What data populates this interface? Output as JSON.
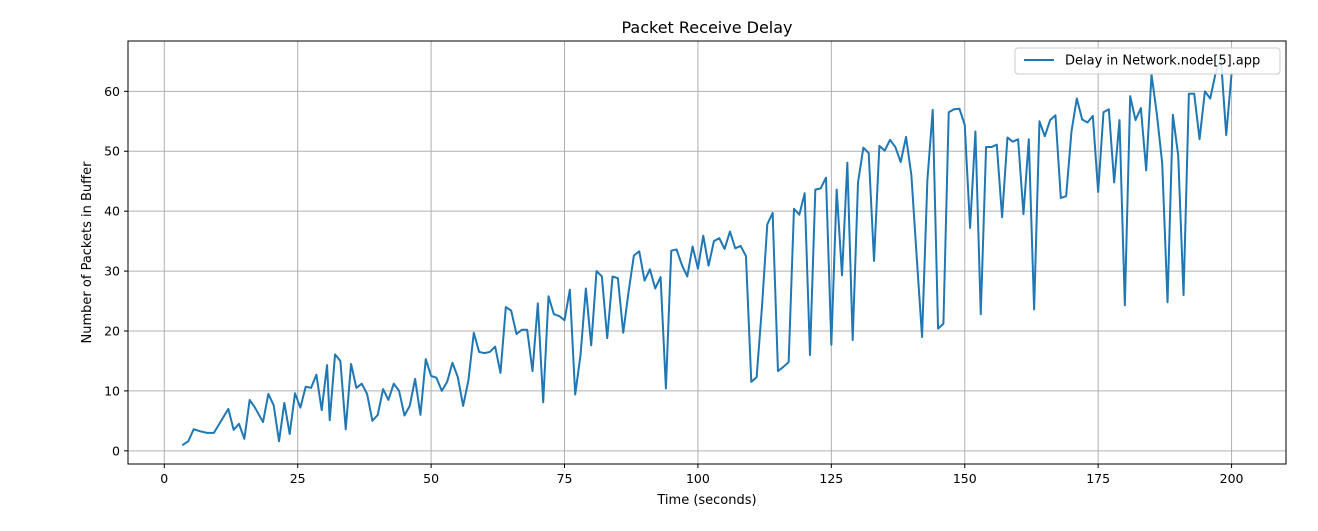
{
  "chart_data": {
    "type": "line",
    "title": "Packet Receive Delay",
    "xlabel": "Time (seconds)",
    "ylabel": "Number of Packets in Buffer",
    "xlim": [
      -6.8,
      210.2
    ],
    "ylim": [
      -2.2,
      68.4
    ],
    "xticks": [
      0,
      25,
      50,
      75,
      100,
      125,
      150,
      175,
      200
    ],
    "yticks": [
      0,
      10,
      20,
      30,
      40,
      50,
      60
    ],
    "grid": true,
    "legend_position": "top-right",
    "colors": {
      "series": "#1f77b4",
      "grid": "#b0b0b0",
      "axes": "#000000"
    },
    "series": [
      {
        "name": "Delay in Network.node[5].app",
        "x": [
          3.5,
          4.5,
          5.5,
          7,
          8,
          9.3,
          12,
          13,
          14,
          15,
          16,
          17,
          18.5,
          19.5,
          20.5,
          21.5,
          22.5,
          23.5,
          24.5,
          25.5,
          26.5,
          27.5,
          28.5,
          29.5,
          30.5,
          31,
          32,
          33,
          34,
          35,
          36,
          37,
          38,
          39,
          40,
          41,
          42,
          43,
          44,
          45,
          46,
          47,
          48,
          49,
          50,
          51,
          52,
          53,
          54,
          55,
          56,
          57,
          58,
          59,
          60,
          61,
          62,
          63,
          64,
          65,
          66,
          67,
          68,
          69,
          70,
          71,
          72,
          73,
          74,
          75,
          76,
          77,
          78,
          79,
          80,
          81,
          82,
          83,
          84,
          85,
          86,
          87,
          88,
          89,
          90,
          91,
          92,
          93,
          94,
          95,
          96,
          97,
          98,
          99,
          100,
          101,
          102,
          103,
          104,
          105,
          106,
          107,
          108,
          109,
          110,
          111,
          112,
          113,
          114,
          115,
          116,
          117,
          118,
          119,
          120,
          121,
          122,
          123,
          124,
          125,
          126,
          127,
          128,
          129,
          130,
          131,
          132,
          133,
          134,
          135,
          136,
          137,
          138,
          139,
          140,
          141,
          142,
          143,
          144,
          145,
          146,
          147,
          148,
          149,
          150,
          151,
          152,
          153,
          154,
          155,
          156,
          157,
          158,
          159,
          160,
          161,
          162,
          163,
          164,
          165,
          166,
          167,
          168,
          169,
          170,
          171,
          172,
          173,
          174,
          175,
          176,
          177,
          178,
          179,
          180,
          181,
          182,
          183,
          184,
          185,
          186,
          187,
          188,
          189,
          190,
          191,
          192,
          193,
          194,
          195,
          196,
          197,
          198,
          199,
          200
        ],
        "y": [
          1,
          1.6,
          3.6,
          3.2,
          3,
          3,
          7,
          3.5,
          4.5,
          2,
          8.5,
          7.2,
          4.8,
          9.5,
          7.6,
          1.6,
          8,
          2.8,
          9.6,
          7.2,
          10.7,
          10.5,
          12.7,
          6.8,
          14.3,
          5.1,
          16.1,
          15,
          3.6,
          14.5,
          10.5,
          11.2,
          9.5,
          5,
          6,
          10.3,
          8.5,
          11.2,
          10,
          5.9,
          7.5,
          12,
          6,
          15.3,
          12.5,
          12.2,
          10,
          11.5,
          14.7,
          12.3,
          7.5,
          11.8,
          19.7,
          16.5,
          16.3,
          16.5,
          17.4,
          13,
          24,
          23.4,
          19.5,
          20.2,
          20.2,
          13.3,
          24.6,
          8.1,
          25.8,
          22.8,
          22.5,
          21.8,
          26.9,
          9.4,
          16,
          27.1,
          17.6,
          30,
          29.1,
          18.8,
          29.1,
          28.8,
          19.7,
          26.5,
          32.6,
          33.3,
          28.4,
          30.3,
          27.1,
          29,
          10.4,
          33.4,
          33.6,
          31,
          29.1,
          34.1,
          30.4,
          35.9,
          30.9,
          35,
          35.5,
          33.7,
          36.6,
          33.8,
          34.2,
          32.5,
          11.5,
          12.3,
          24,
          37.8,
          39.7,
          13.3,
          14,
          14.8,
          40.4,
          39.4,
          43,
          16,
          43.6,
          43.8,
          45.6,
          17.7,
          43.6,
          29.3,
          48.1,
          18.5,
          44.8,
          50.6,
          49.7,
          31.7,
          50.9,
          50.1,
          51.9,
          50.7,
          48.2,
          52.4,
          46,
          32.3,
          19,
          45.2,
          56.9,
          20.4,
          21.2,
          56.5,
          57,
          57.1,
          54.4,
          37.2,
          53.3,
          22.8,
          50.7,
          50.7,
          51.1,
          39,
          52.3,
          51.6,
          52,
          39.5,
          52,
          23.6,
          55,
          52.5,
          55.2,
          56,
          42.2,
          42.5,
          53.3,
          58.8,
          55.3,
          54.8,
          55.9,
          43.2,
          56.5,
          57,
          44.8,
          55.2,
          24.3,
          59.2,
          55.2,
          57.2,
          46.8,
          62.8,
          56.2,
          48,
          24.8,
          56.1,
          49.3,
          26,
          59.6,
          59.6,
          52,
          60,
          58.8,
          63,
          65.5,
          52.7,
          63
        ]
      }
    ]
  }
}
